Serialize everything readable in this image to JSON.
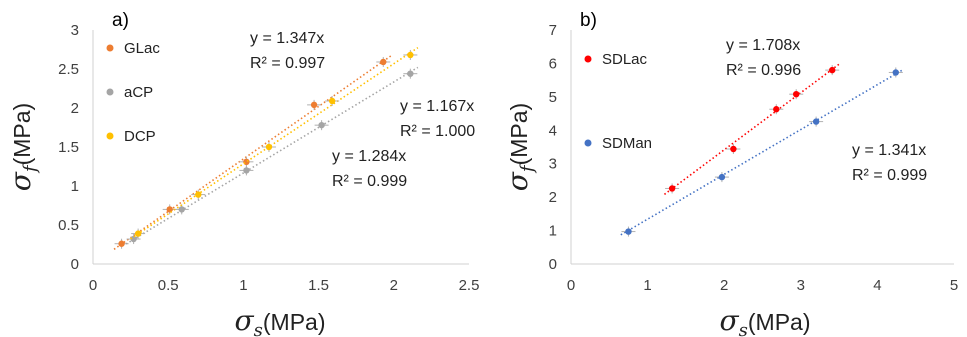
{
  "chart_data": [
    {
      "panel": "a)",
      "type": "scatter",
      "xlabel": {
        "symbol": "σ",
        "sub": "s",
        "unit": "(MPa)"
      },
      "ylabel": {
        "symbol": "σ",
        "sub": "f",
        "unit": "(MPa)"
      },
      "xlim": [
        0,
        2.5
      ],
      "ylim": [
        0,
        3
      ],
      "xticks": [
        "0",
        "0.5",
        "1",
        "1.5",
        "2",
        "2.5"
      ],
      "yticks": [
        "0",
        "0.5",
        "1",
        "1.5",
        "2",
        "2.5",
        "3"
      ],
      "legend_position": "top-left",
      "series": [
        {
          "name": "GLac",
          "color": "#ed7d31",
          "slope": 1.347,
          "points": [
            [
              0.19,
              0.26
            ],
            [
              0.51,
              0.7
            ],
            [
              1.02,
              1.31
            ],
            [
              1.47,
              2.04
            ],
            [
              1.93,
              2.59
            ]
          ],
          "equation": "y = 1.347x",
          "r2": "R² = 0.997"
        },
        {
          "name": "aCP",
          "color": "#a5a5a5",
          "slope": 1.167,
          "points": [
            [
              0.27,
              0.32
            ],
            [
              0.59,
              0.7
            ],
            [
              1.02,
              1.2
            ],
            [
              1.52,
              1.78
            ],
            [
              2.11,
              2.44
            ]
          ],
          "equation": "y = 1.167x",
          "r2": "R² = 1.000"
        },
        {
          "name": "DCP",
          "color": "#ffc000",
          "slope": 1.284,
          "points": [
            [
              0.3,
              0.39
            ],
            [
              0.7,
              0.89
            ],
            [
              1.17,
              1.5
            ],
            [
              1.59,
              2.09
            ],
            [
              2.11,
              2.68
            ]
          ],
          "equation": "y = 1.284x",
          "r2": "R² = 0.999"
        }
      ]
    },
    {
      "panel": "b)",
      "type": "scatter",
      "xlabel": {
        "symbol": "σ",
        "sub": "s",
        "unit": "(MPa)"
      },
      "ylabel": {
        "symbol": "σ",
        "sub": "f",
        "unit": "(MPa)"
      },
      "xlim": [
        0,
        5
      ],
      "ylim": [
        0,
        7
      ],
      "xticks": [
        "0",
        "1",
        "2",
        "3",
        "4",
        "5"
      ],
      "yticks": [
        "0",
        "1",
        "2",
        "3",
        "4",
        "5",
        "6",
        "7"
      ],
      "legend_position": "top-left",
      "series": [
        {
          "name": "SDLac",
          "color": "#ff0000",
          "slope": 1.708,
          "points": [
            [
              1.32,
              2.26
            ],
            [
              2.12,
              3.44
            ],
            [
              2.68,
              4.63
            ],
            [
              2.94,
              5.08
            ],
            [
              3.41,
              5.8
            ]
          ],
          "equation": "y = 1.708x",
          "r2": "R² = 0.996"
        },
        {
          "name": "SDMan",
          "color": "#4472c4",
          "slope": 1.341,
          "points": [
            [
              0.75,
              0.97
            ],
            [
              1.97,
              2.6
            ],
            [
              3.2,
              4.26
            ],
            [
              4.24,
              5.73
            ]
          ],
          "equation": "y = 1.341x",
          "r2": "R² = 0.999"
        }
      ]
    }
  ]
}
